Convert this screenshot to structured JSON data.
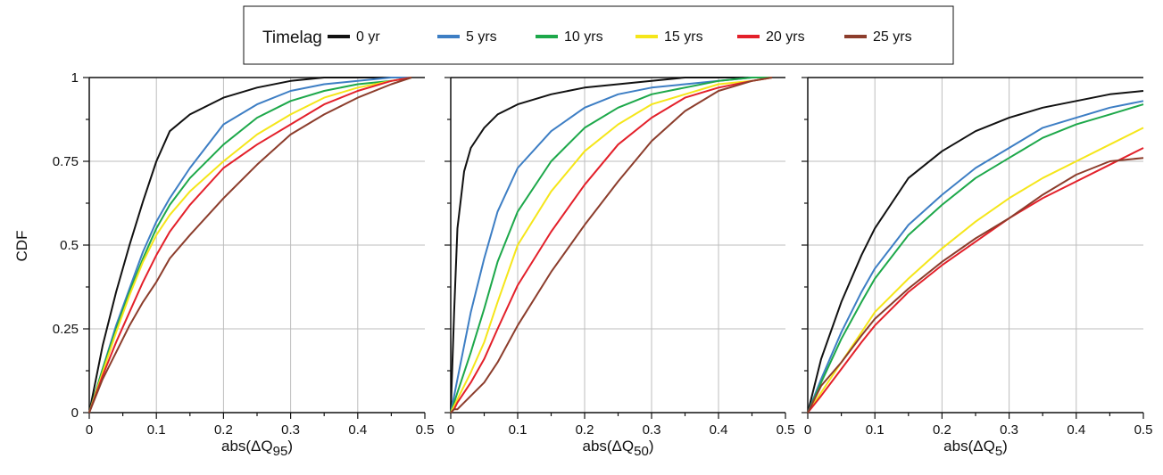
{
  "legend": {
    "title": "Timelag",
    "entries": [
      {
        "label": "0 yr",
        "color": "#111111"
      },
      {
        "label": "5 yrs",
        "color": "#3d7ec4"
      },
      {
        "label": "10 yrs",
        "color": "#1da84a"
      },
      {
        "label": "15 yrs",
        "color": "#f5e61a"
      },
      {
        "label": "20 yrs",
        "color": "#e3202a"
      },
      {
        "label": "25 yrs",
        "color": "#8c3d2c"
      }
    ]
  },
  "chart_data": [
    {
      "type": "line",
      "xlabel_prefix": "abs(ΔQ",
      "xlabel_sub": "95",
      "xlabel_suffix": ")",
      "ylabel": "CDF",
      "xlim": [
        0,
        0.5
      ],
      "ylim": [
        0,
        1
      ],
      "xticks": [
        "0",
        "0.1",
        "0.2",
        "0.3",
        "0.4",
        "0.5"
      ],
      "yticks": [
        "0",
        "0.25",
        "0.5",
        "0.75",
        "1"
      ],
      "grid": true,
      "x": [
        0,
        0.02,
        0.04,
        0.06,
        0.08,
        0.1,
        0.12,
        0.15,
        0.2,
        0.25,
        0.3,
        0.35,
        0.4,
        0.45,
        0.48
      ],
      "series": [
        {
          "name": "0 yr",
          "values": [
            0,
            0.2,
            0.36,
            0.5,
            0.63,
            0.75,
            0.84,
            0.89,
            0.94,
            0.97,
            0.99,
            1.0,
            1.0,
            1.0,
            1.0
          ]
        },
        {
          "name": "5 yrs",
          "values": [
            0,
            0.13,
            0.26,
            0.37,
            0.48,
            0.57,
            0.64,
            0.73,
            0.86,
            0.92,
            0.96,
            0.98,
            0.99,
            1.0,
            1.0
          ]
        },
        {
          "name": "10 yrs",
          "values": [
            0,
            0.13,
            0.25,
            0.36,
            0.46,
            0.55,
            0.62,
            0.7,
            0.8,
            0.88,
            0.93,
            0.96,
            0.98,
            0.99,
            1.0
          ]
        },
        {
          "name": "15 yrs",
          "values": [
            0,
            0.12,
            0.24,
            0.35,
            0.45,
            0.53,
            0.59,
            0.66,
            0.75,
            0.83,
            0.89,
            0.94,
            0.97,
            0.99,
            1.0
          ]
        },
        {
          "name": "20 yrs",
          "values": [
            0,
            0.11,
            0.21,
            0.3,
            0.39,
            0.47,
            0.54,
            0.62,
            0.73,
            0.8,
            0.86,
            0.92,
            0.96,
            0.99,
            1.0
          ]
        },
        {
          "name": "25 yrs",
          "values": [
            0,
            0.1,
            0.18,
            0.26,
            0.33,
            0.39,
            0.46,
            0.53,
            0.64,
            0.74,
            0.83,
            0.89,
            0.94,
            0.98,
            1.0
          ]
        }
      ]
    },
    {
      "type": "line",
      "xlabel_prefix": "abs(ΔQ",
      "xlabel_sub": "50",
      "xlabel_suffix": ")",
      "ylabel": "",
      "xlim": [
        0,
        0.5
      ],
      "ylim": [
        0,
        1
      ],
      "xticks": [
        "0",
        "0.1",
        "0.2",
        "0.3",
        "0.4",
        "0.5"
      ],
      "yticks": [],
      "grid": true,
      "x": [
        0,
        0.005,
        0.01,
        0.02,
        0.03,
        0.05,
        0.07,
        0.1,
        0.15,
        0.2,
        0.25,
        0.3,
        0.35,
        0.4,
        0.45,
        0.48
      ],
      "series": [
        {
          "name": "0 yr",
          "values": [
            0,
            0.3,
            0.55,
            0.72,
            0.79,
            0.85,
            0.89,
            0.92,
            0.95,
            0.97,
            0.98,
            0.99,
            1.0,
            1.0,
            1.0,
            1.0
          ]
        },
        {
          "name": "5 yrs",
          "values": [
            0,
            0.05,
            0.1,
            0.2,
            0.3,
            0.46,
            0.6,
            0.73,
            0.84,
            0.91,
            0.95,
            0.97,
            0.98,
            0.99,
            1.0,
            1.0
          ]
        },
        {
          "name": "10 yrs",
          "values": [
            0,
            0.03,
            0.06,
            0.12,
            0.18,
            0.31,
            0.45,
            0.6,
            0.75,
            0.85,
            0.91,
            0.95,
            0.97,
            0.99,
            1.0,
            1.0
          ]
        },
        {
          "name": "15 yrs",
          "values": [
            0,
            0.02,
            0.04,
            0.08,
            0.12,
            0.21,
            0.33,
            0.5,
            0.66,
            0.78,
            0.86,
            0.92,
            0.95,
            0.98,
            0.99,
            1.0
          ]
        },
        {
          "name": "20 yrs",
          "values": [
            0,
            0.01,
            0.03,
            0.06,
            0.09,
            0.16,
            0.25,
            0.38,
            0.54,
            0.68,
            0.8,
            0.88,
            0.94,
            0.97,
            0.99,
            1.0
          ]
        },
        {
          "name": "25 yrs",
          "values": [
            0,
            0.01,
            0.01,
            0.03,
            0.05,
            0.09,
            0.15,
            0.26,
            0.42,
            0.56,
            0.69,
            0.81,
            0.9,
            0.96,
            0.99,
            1.0
          ]
        }
      ]
    },
    {
      "type": "line",
      "xlabel_prefix": "abs(ΔQ",
      "xlabel_sub": "5",
      "xlabel_suffix": ")",
      "ylabel": "",
      "xlim": [
        0,
        0.5
      ],
      "ylim": [
        0,
        1
      ],
      "xticks": [
        "0",
        "0.1",
        "0.2",
        "0.3",
        "0.4",
        "0.5"
      ],
      "yticks": [],
      "grid": true,
      "x": [
        0,
        0.02,
        0.05,
        0.08,
        0.1,
        0.15,
        0.2,
        0.25,
        0.3,
        0.35,
        0.4,
        0.45,
        0.5
      ],
      "series": [
        {
          "name": "0 yr",
          "values": [
            0,
            0.16,
            0.33,
            0.47,
            0.55,
            0.7,
            0.78,
            0.84,
            0.88,
            0.91,
            0.93,
            0.95,
            0.96
          ]
        },
        {
          "name": "5 yrs",
          "values": [
            0,
            0.1,
            0.24,
            0.36,
            0.43,
            0.56,
            0.65,
            0.73,
            0.79,
            0.85,
            0.88,
            0.91,
            0.93
          ]
        },
        {
          "name": "10 yrs",
          "values": [
            0,
            0.09,
            0.22,
            0.33,
            0.4,
            0.53,
            0.62,
            0.7,
            0.76,
            0.82,
            0.86,
            0.89,
            0.92
          ]
        },
        {
          "name": "15 yrs",
          "values": [
            0,
            0.06,
            0.15,
            0.24,
            0.3,
            0.4,
            0.49,
            0.57,
            0.64,
            0.7,
            0.75,
            0.8,
            0.85
          ]
        },
        {
          "name": "20 yrs",
          "values": [
            0,
            0.05,
            0.13,
            0.21,
            0.26,
            0.36,
            0.44,
            0.51,
            0.58,
            0.64,
            0.69,
            0.74,
            0.79
          ]
        },
        {
          "name": "25 yrs",
          "values": [
            0,
            0.08,
            0.15,
            0.23,
            0.28,
            0.37,
            0.45,
            0.52,
            0.58,
            0.65,
            0.71,
            0.75,
            0.76
          ]
        }
      ]
    }
  ]
}
